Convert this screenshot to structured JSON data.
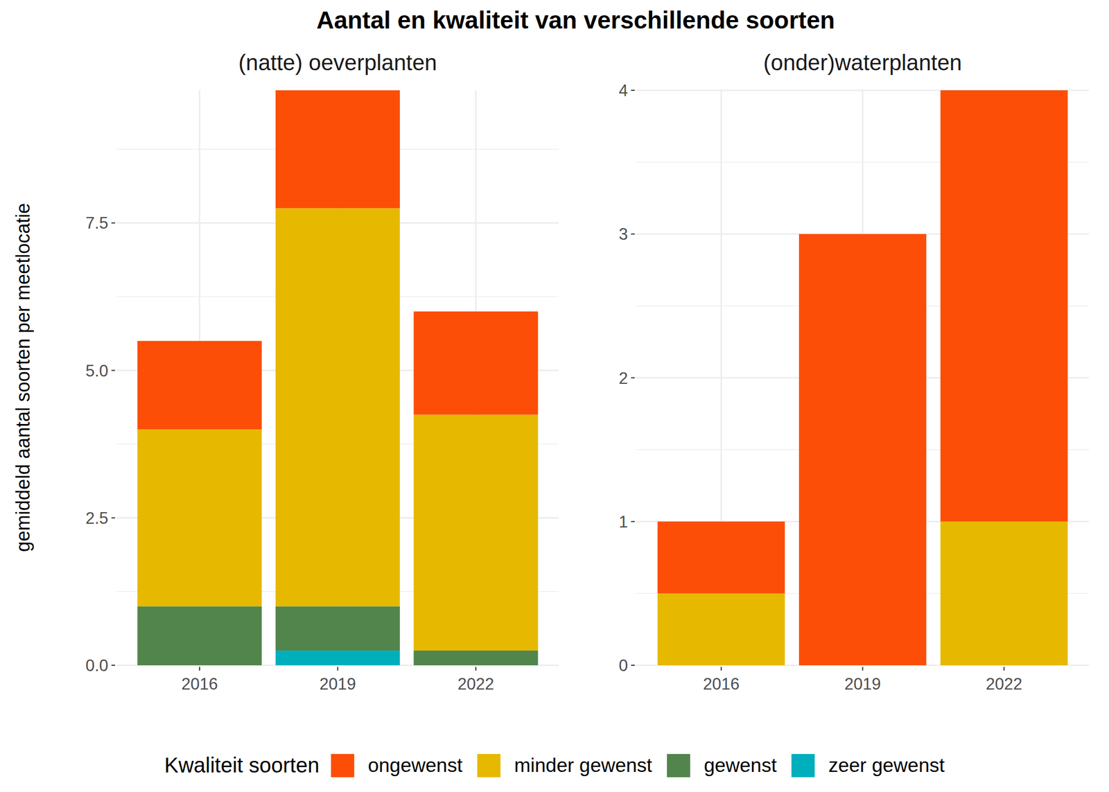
{
  "chart_data": [
    {
      "type": "bar",
      "stacked": true,
      "grid": true,
      "legend": "bottom",
      "title": "Aantal en kwaliteit van verschillende soorten",
      "subtitle": "(natte) oeverplanten",
      "y_label": "gemiddeld aantal soorten per meetlocatie",
      "legend_title": "Kwaliteit soorten",
      "categories": [
        "2016",
        "2019",
        "2022"
      ],
      "series": [
        {
          "name": "ongewenst",
          "color": "#FC4E07",
          "values": [
            1.5,
            2,
            1.75
          ]
        },
        {
          "name": "minder gewenst",
          "color": "#E7B800",
          "values": [
            3,
            6.75,
            4
          ]
        },
        {
          "name": "gewenst",
          "color": "#52854C",
          "values": [
            1,
            0.75,
            0.25
          ]
        },
        {
          "name": "zeer gewenst",
          "color": "#00AFBB",
          "values": [
            0,
            0.25,
            0
          ]
        }
      ],
      "ylim": [
        0,
        9.75
      ],
      "yticks": [
        {
          "value": 0,
          "label": "0.0"
        },
        2.5,
        {
          "value": 5,
          "label": "5.0"
        },
        7.5
      ]
    },
    {
      "type": "bar",
      "stacked": true,
      "grid": true,
      "subtitle": "(onder)waterplanten",
      "categories": [
        "2016",
        "2019",
        "2022"
      ],
      "series": [
        {
          "name": "ongewenst",
          "color": "#FC4E07",
          "values": [
            0.5,
            3,
            3
          ]
        },
        {
          "name": "minder gewenst",
          "color": "#E7B800",
          "values": [
            0.5,
            0,
            1
          ]
        },
        {
          "name": "gewenst",
          "color": "#52854C",
          "values": [
            0,
            0,
            0
          ]
        },
        {
          "name": "zeer gewenst",
          "color": "#00AFBB",
          "values": [
            0,
            0,
            0
          ]
        }
      ],
      "ylim": [
        0,
        4
      ],
      "yticks": [
        0,
        1,
        2,
        3,
        4
      ]
    }
  ]
}
